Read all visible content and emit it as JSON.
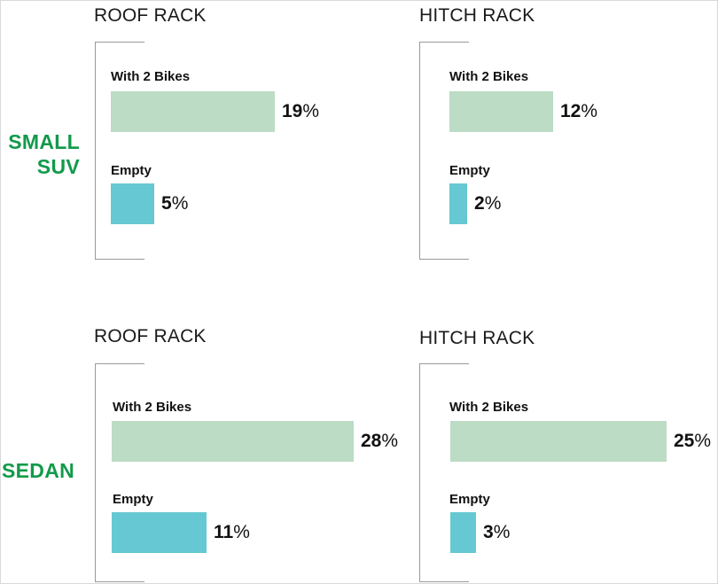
{
  "chart_data": {
    "type": "bar",
    "orientation": "horizontal",
    "layout": "2x2 small multiples",
    "rows": [
      "SMALL SUV",
      "SEDAN"
    ],
    "columns": [
      "ROOF RACK",
      "HITCH RACK"
    ],
    "series_names": [
      "With 2 Bikes",
      "Empty"
    ],
    "colors": {
      "With 2 Bikes": "#bcdcc5",
      "Empty": "#66c8d2",
      "row_label": "#129a4a"
    },
    "xlim": [
      0,
      28
    ],
    "unit": "%",
    "panels": [
      {
        "row": "SMALL SUV",
        "row_lines": [
          "SMALL",
          "SUV"
        ],
        "title": "ROOF RACK",
        "bars": [
          {
            "label": "With 2 Bikes",
            "value": 19
          },
          {
            "label": "Empty",
            "value": 5
          }
        ]
      },
      {
        "row": "SMALL SUV",
        "row_lines": [
          "SMALL",
          "SUV"
        ],
        "title": "HITCH RACK",
        "bars": [
          {
            "label": "With 2 Bikes",
            "value": 12
          },
          {
            "label": "Empty",
            "value": 2
          }
        ]
      },
      {
        "row": "SEDAN",
        "row_lines": [
          "SEDAN"
        ],
        "title": "ROOF RACK",
        "bars": [
          {
            "label": "With 2 Bikes",
            "value": 28
          },
          {
            "label": "Empty",
            "value": 11
          }
        ]
      },
      {
        "row": "SEDAN",
        "row_lines": [
          "SEDAN"
        ],
        "title": "HITCH RACK",
        "bars": [
          {
            "label": "With 2 Bikes",
            "value": 25
          },
          {
            "label": "Empty",
            "value": 3
          }
        ]
      }
    ]
  }
}
